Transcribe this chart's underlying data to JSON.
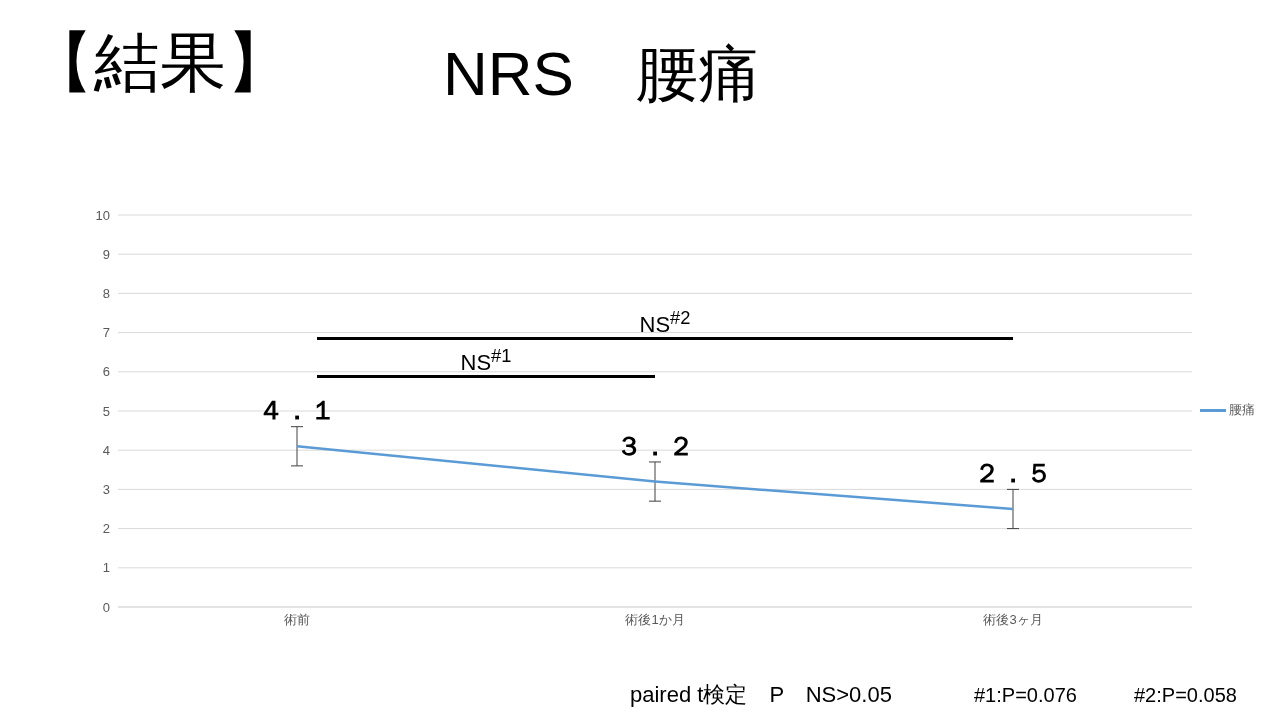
{
  "chart_data": {
    "type": "line",
    "title": "【結果】",
    "subtitle": "NRS　腰痛",
    "categories": [
      "術前",
      "術後1か月",
      "術後3ヶ月"
    ],
    "series": [
      {
        "name": "腰痛",
        "color": "#5b9bd5",
        "values": [
          4.1,
          3.2,
          2.5
        ],
        "errors": [
          0.5,
          0.5,
          0.5
        ],
        "value_labels": [
          "４．１",
          "３．２",
          "２．５"
        ]
      }
    ],
    "ylim": [
      0,
      10
    ],
    "yticks": [
      0,
      1,
      2,
      3,
      4,
      5,
      6,
      7,
      8,
      9,
      10
    ],
    "grid": "y",
    "legend": "right",
    "marker": "none",
    "line_style": "solid",
    "annotations": [
      "NS$^{#1}$",
      "NS$^{#2}$",
      "paired t検定　P　NS>0.05",
      "#1:P=0.076",
      "#2:P=0.058"
    ]
  }
}
